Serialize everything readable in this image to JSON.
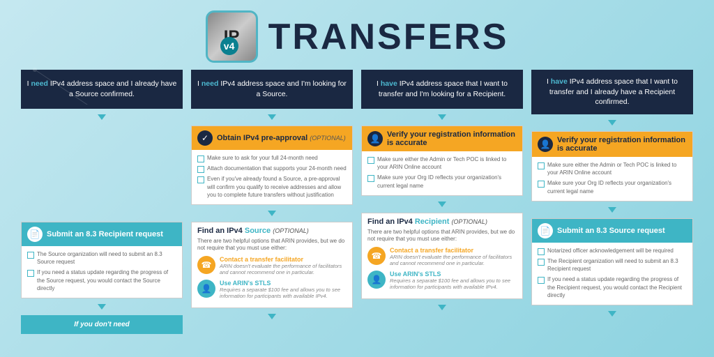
{
  "title": "TRANSFERS",
  "logo_text": "IP",
  "logo_sub": "v4",
  "colors": {
    "dark": "#1a2842",
    "teal": "#3eb5c5",
    "orange": "#f5a623",
    "bg1": "#c5e8f0",
    "bg2": "#8dd3e0"
  },
  "columns": [
    {
      "header_pre": "I ",
      "header_strong": "need",
      "header_post": " IPv4 address space and I already have a Source confirmed.",
      "cards": [
        {
          "type": "teal",
          "icon": "doc",
          "title": "Submit an 8.3 Recipient request",
          "items": [
            "The Source organization will need to submit an 8.3 Source request",
            "If you need a status update regarding the progress of the Source request, you would contact the Source directly"
          ]
        }
      ],
      "bottom": "If you don't need"
    },
    {
      "header_pre": "I ",
      "header_strong": "need",
      "header_post": " IPv4 address space and I'm looking for a Source.",
      "cards": [
        {
          "type": "orange",
          "icon": "check",
          "title": "Obtain IPv4 pre-approval",
          "optional": "(OPTIONAL)",
          "items": [
            "Make sure to ask for your full 24-month need",
            "Attach documentation that supports your 24-month need",
            "Even if you've already found a Source, a pre-approval will confirm you qualify to receive addresses and allow you to complete future transfers without justification"
          ]
        },
        {
          "type": "find",
          "title": "Find an IPv4 Source",
          "optional": "(OPTIONAL)",
          "intro": "There are two helpful options that ARIN provides, but we do not require that you must use either:",
          "options": [
            {
              "color": "orange",
              "title": "Contact a transfer facilitator",
              "desc": "ARIN doesn't evaluate the performance of facilitators and cannot recommend one in particular."
            },
            {
              "color": "teal",
              "title": "Use ARIN's STLS",
              "desc": "Requires a separate $100 fee and allows you to see information for participants with available IPv4."
            }
          ]
        }
      ]
    },
    {
      "header_pre": "I ",
      "header_strong": "have",
      "header_post": " IPv4 address space that I want to transfer and I'm looking for a Recipient.",
      "cards": [
        {
          "type": "orange",
          "icon": "person",
          "title": "Verify your registration information is accurate",
          "items": [
            "Make sure either the Admin or Tech POC is linked to your ARIN Online account",
            "Make sure your Org ID reflects your organization's current legal name"
          ]
        },
        {
          "type": "find",
          "title": "Find an IPv4 Recipient",
          "optional": "(OPTIONAL)",
          "intro": "There are two helpful options that ARIN provides, but we do not require that you must use either:",
          "options": [
            {
              "color": "orange",
              "title": "Contact a transfer facilitator",
              "desc": "ARIN doesn't evaluate the performance of facilitators and cannot recommend one in particular."
            },
            {
              "color": "teal",
              "title": "Use ARIN's STLS",
              "desc": "Requires a separate $100 fee and allows you to see information for participants with available IPv4."
            }
          ]
        }
      ]
    },
    {
      "header_pre": "I ",
      "header_strong": "have",
      "header_post": " IPv4 address space that I want to transfer and I already have a Recipient confirmed.",
      "cards": [
        {
          "type": "orange",
          "icon": "person",
          "title": "Verify your registration information is accurate",
          "items": [
            "Make sure either the Admin or Tech POC is linked to your ARIN Online account",
            "Make sure your Org ID reflects your organization's current legal name"
          ]
        },
        {
          "type": "teal",
          "icon": "doc",
          "title": "Submit an 8.3 Source request",
          "items": [
            "Notarized officer acknowledgement will be required",
            "The Recipient organization will need to submit an 8.3 Recipient request",
            "If you need a status update regarding the progress of the Recipient request, you would contact the Recipient directly"
          ]
        }
      ]
    }
  ]
}
